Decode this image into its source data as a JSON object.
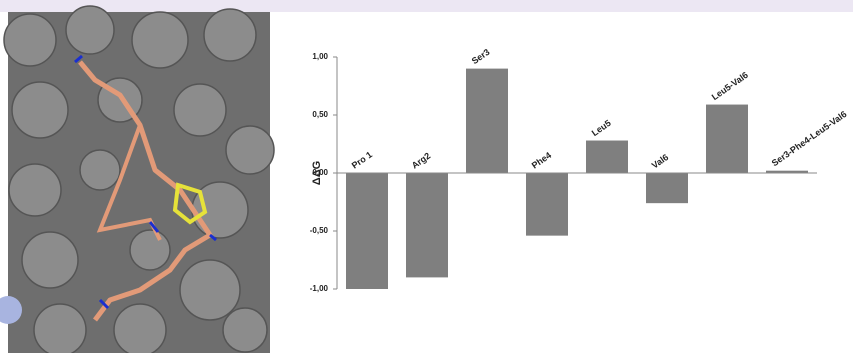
{
  "chart_data": {
    "type": "bar",
    "ylabel": "ΔΔG",
    "categories": [
      "Pro 1",
      "Arg2",
      "Ser3",
      "Phe4",
      "Leu5",
      "Val6",
      "Leu5-Val6",
      "Ser3-Phe4-Leu5-Val6"
    ],
    "values": [
      -1.0,
      -0.9,
      0.9,
      -0.54,
      0.28,
      -0.26,
      0.59,
      0.02
    ],
    "color": "#7f7f7f",
    "ylim": [
      -1.0,
      1.0
    ],
    "yticks": [
      {
        "value": 1.0,
        "label": "1,00"
      },
      {
        "value": 0.5,
        "label": "0,50"
      },
      {
        "value": 0,
        "label": "0,00"
      },
      {
        "value": -0.5,
        "label": "-0,50"
      },
      {
        "value": -1.0,
        "label": "-1,00"
      }
    ]
  }
}
